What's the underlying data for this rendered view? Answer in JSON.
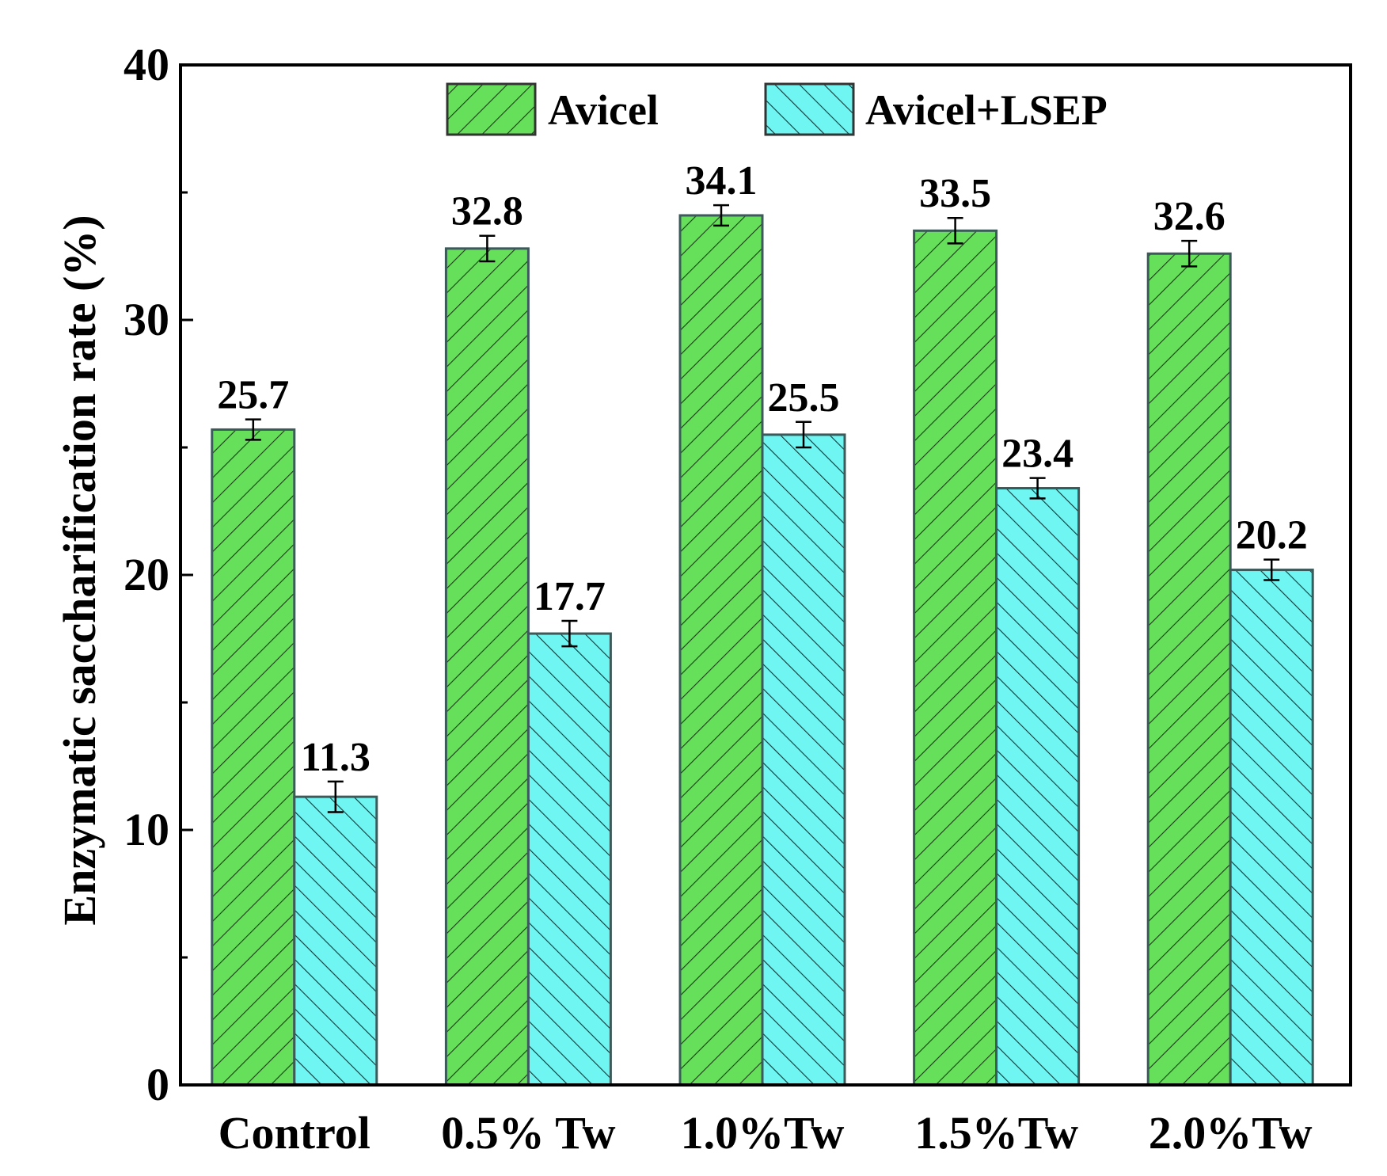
{
  "chart_data": {
    "type": "bar",
    "title": "",
    "xlabel": "",
    "ylabel": "Enzymatic saccharification rate (%)",
    "ylim": [
      0,
      40
    ],
    "yticks": [
      0,
      10,
      20,
      30,
      40
    ],
    "grid": false,
    "legend_position": "top-center",
    "categories": [
      "Control",
      "0.5% Tw",
      "1.0%Tw",
      "1.5%Tw",
      "2.0%Tw"
    ],
    "series": [
      {
        "name": "Avicel",
        "color": "#66e05a",
        "hatch": "forward-diagonal",
        "values": [
          25.7,
          32.8,
          34.1,
          33.5,
          32.6
        ],
        "errors": [
          0.4,
          0.5,
          0.4,
          0.5,
          0.5
        ],
        "labels": [
          "25.7",
          "32.8",
          "34.1",
          "33.5",
          "32.6"
        ]
      },
      {
        "name": "Avicel+LSEP",
        "color": "#6ff5f2",
        "hatch": "backward-diagonal",
        "values": [
          11.3,
          17.7,
          25.5,
          23.4,
          20.2
        ],
        "errors": [
          0.6,
          0.5,
          0.5,
          0.4,
          0.4
        ],
        "labels": [
          "11.3",
          "17.7",
          "25.5",
          "23.4",
          "20.2"
        ]
      }
    ]
  }
}
